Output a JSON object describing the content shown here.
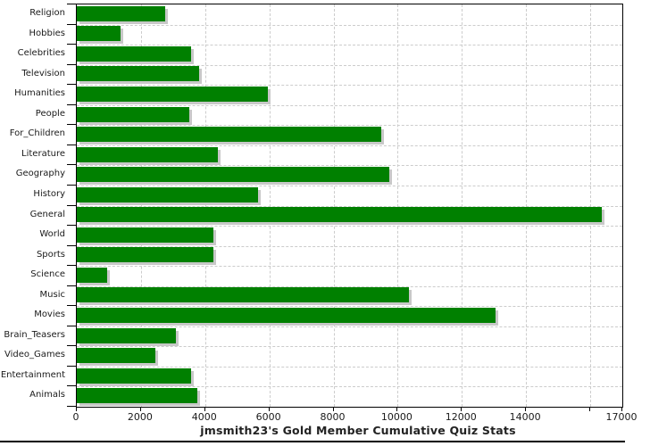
{
  "chart_data": {
    "type": "bar",
    "orientation": "horizontal",
    "title": "jmsmith23's Gold Member Cumulative Quiz Stats",
    "categories": [
      "Religion",
      "Hobbies",
      "Celebrities",
      "Television",
      "Humanities",
      "People",
      "For_Children",
      "Literature",
      "Geography",
      "History",
      "General",
      "World",
      "Sports",
      "Science",
      "Music",
      "Movies",
      "Brain_Teasers",
      "Video_Games",
      "Entertainment",
      "Animals"
    ],
    "values": [
      2750,
      1350,
      3550,
      3800,
      5950,
      3500,
      9500,
      4400,
      9750,
      5650,
      16350,
      4250,
      4250,
      950,
      10350,
      13050,
      3100,
      2450,
      3550,
      3750
    ],
    "xlim": [
      0,
      17000
    ],
    "x_ticks": [
      {
        "value": 0,
        "label": "0"
      },
      {
        "value": 2000,
        "label": "2000"
      },
      {
        "value": 4000,
        "label": "4000"
      },
      {
        "value": 6000,
        "label": "6000"
      },
      {
        "value": 8000,
        "label": "8000"
      },
      {
        "value": 10000,
        "label": "10000"
      },
      {
        "value": 12000,
        "label": "12000"
      },
      {
        "value": 14000,
        "label": "14000"
      },
      {
        "value": 16000,
        "label": ""
      },
      {
        "value": 17000,
        "label": "17000"
      }
    ],
    "grid": "dashed, both axes",
    "legend": "none",
    "colors": {
      "bar": "#008000",
      "bar_shadow": "#c8c8c8",
      "gridline": "#cccccc",
      "frame": "#000000",
      "text": "#1a1a1a"
    }
  }
}
